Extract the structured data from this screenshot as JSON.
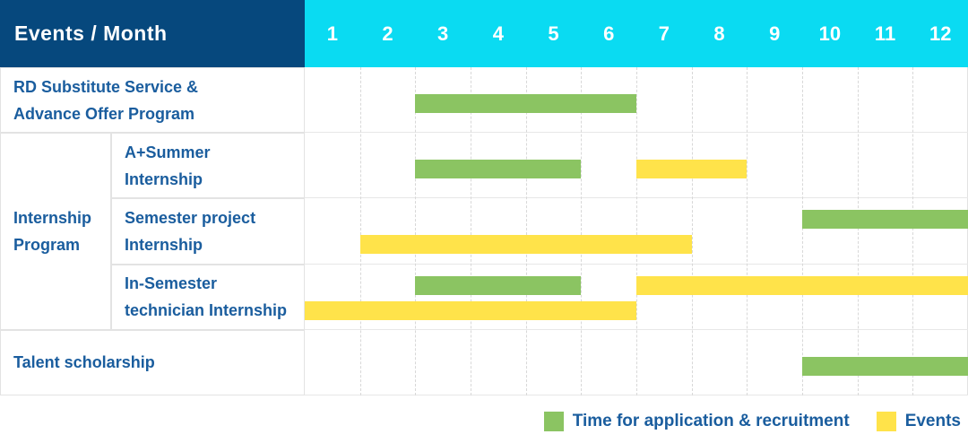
{
  "header": {
    "corner_label": "Events / Month",
    "months": [
      "1",
      "2",
      "3",
      "4",
      "5",
      "6",
      "7",
      "8",
      "9",
      "10",
      "11",
      "12"
    ]
  },
  "group": {
    "label_lines": [
      "Internship",
      "Program"
    ]
  },
  "rows": [
    {
      "label": "RD Substitute Service & Advance Offer Program",
      "label_lines": [
        "RD Substitute Service &",
        "Advance Offer Program"
      ],
      "bars": [
        {
          "key": "application",
          "start_month": 3,
          "end_month": 6,
          "lane": "single"
        }
      ]
    },
    {
      "label": "A+Summer Internship",
      "label_lines": [
        "A+Summer",
        "Internship"
      ],
      "bars": [
        {
          "key": "application",
          "start_month": 3,
          "end_month": 5,
          "lane": "single"
        },
        {
          "key": "event",
          "start_month": 7,
          "end_month": 8,
          "lane": "single"
        }
      ]
    },
    {
      "label": "Semester project Internship",
      "label_lines": [
        "Semester project",
        "Internship"
      ],
      "bars": [
        {
          "key": "application",
          "start_month": 10,
          "end_month": 12,
          "lane": "top"
        },
        {
          "key": "event",
          "start_month": 2,
          "end_month": 7,
          "lane": "bottom"
        }
      ]
    },
    {
      "label": "In-Semester technician Internship",
      "label_lines": [
        "In-Semester",
        "technician Internship"
      ],
      "bars": [
        {
          "key": "application",
          "start_month": 3,
          "end_month": 5,
          "lane": "top"
        },
        {
          "key": "event",
          "start_month": 7,
          "end_month": 12,
          "lane": "top"
        },
        {
          "key": "event",
          "start_month": 1,
          "end_month": 6,
          "lane": "bottom"
        }
      ]
    },
    {
      "label": "Talent scholarship",
      "label_lines": [
        "Talent scholarship"
      ],
      "bars": [
        {
          "key": "application",
          "start_month": 10,
          "end_month": 12,
          "lane": "single"
        }
      ]
    }
  ],
  "legend": {
    "items": [
      {
        "key": "application",
        "label": "Time for application & recruitment"
      },
      {
        "key": "event",
        "label": "Events"
      }
    ]
  },
  "colors": {
    "header_bg": "#06487d",
    "months_bg": "#0adbf2",
    "application": "#8bc462",
    "event": "#ffe34a",
    "label_text": "#1a5d9e"
  },
  "chart_data": {
    "type": "gantt",
    "title": "Events / Month",
    "x_axis": {
      "unit": "month",
      "ticks": [
        1,
        2,
        3,
        4,
        5,
        6,
        7,
        8,
        9,
        10,
        11,
        12
      ],
      "range": [
        1,
        12
      ]
    },
    "legend": [
      "Time for application & recruitment",
      "Events"
    ],
    "legend_position": "bottom-right",
    "grid": "dashed-vertical-month-lines",
    "tasks": [
      {
        "row": "RD Substitute Service & Advance Offer Program",
        "group": null,
        "series": "Time for application & recruitment",
        "start_month": 3,
        "end_month": 6
      },
      {
        "row": "A+Summer Internship",
        "group": "Internship Program",
        "series": "Time for application & recruitment",
        "start_month": 3,
        "end_month": 5
      },
      {
        "row": "A+Summer Internship",
        "group": "Internship Program",
        "series": "Events",
        "start_month": 7,
        "end_month": 8
      },
      {
        "row": "Semester project Internship",
        "group": "Internship Program",
        "series": "Time for application & recruitment",
        "start_month": 10,
        "end_month": 12
      },
      {
        "row": "Semester project Internship",
        "group": "Internship Program",
        "series": "Events",
        "start_month": 2,
        "end_month": 7
      },
      {
        "row": "In-Semester technician Internship",
        "group": "Internship Program",
        "series": "Time for application & recruitment",
        "start_month": 3,
        "end_month": 5
      },
      {
        "row": "In-Semester technician Internship",
        "group": "Internship Program",
        "series": "Events",
        "start_month": 7,
        "end_month": 12
      },
      {
        "row": "In-Semester technician Internship",
        "group": "Internship Program",
        "series": "Events",
        "start_month": 1,
        "end_month": 6
      },
      {
        "row": "Talent scholarship",
        "group": null,
        "series": "Time for application & recruitment",
        "start_month": 10,
        "end_month": 12
      }
    ]
  }
}
